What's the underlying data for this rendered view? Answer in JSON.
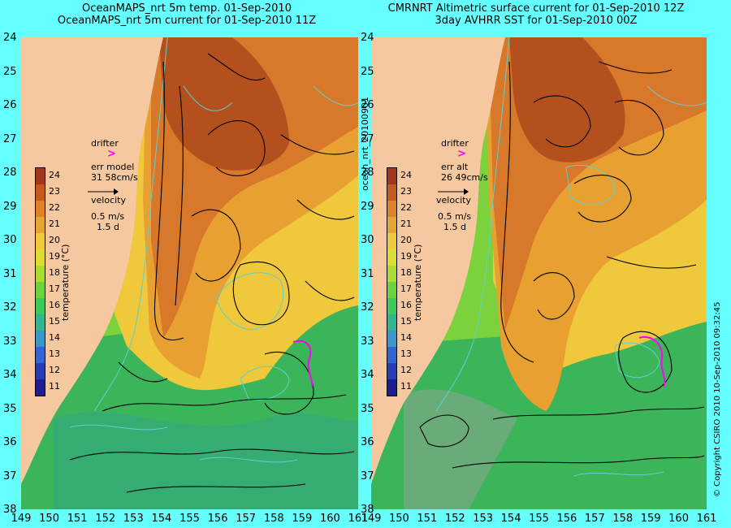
{
  "left_panel": {
    "title_line1": "OceanMAPS_nrt 5m temp. 01-Sep-2010",
    "title_line2": "OceanMAPS_nrt 5m current for 01-Sep-2010 11Z",
    "drifter_label": "drifter",
    "drifter_marker": ">",
    "err_label": "err model",
    "err_value": "31 58cm/s",
    "velocity_label": "velocity",
    "velocity_scale": "0.5 m/s",
    "velocity_time": "1.5 d"
  },
  "right_panel": {
    "title_line1": "CMRNRT Altimetric surface current for 01-Sep-2010 12Z",
    "title_line2": "3day AVHRR SST for 01-Sep-2010 00Z",
    "drifter_label": "drifter",
    "drifter_marker": ">",
    "err_label": "err alt",
    "err_value": "26 49cm/s",
    "velocity_label": "velocity",
    "velocity_scale": "0.5 m/s",
    "velocity_time": "1.5 d"
  },
  "center_vertical_label": "ocean_nrt_20100901",
  "copyright_label": "© Copyright CSIRO 2010   10-Sep-2010 09:32:45",
  "colorbar": {
    "label": "temperature (°C)",
    "ticks": [
      "24",
      "23",
      "22",
      "21",
      "20",
      "19",
      "18",
      "17",
      "16",
      "15",
      "14",
      "13",
      "12",
      "11"
    ],
    "colors": [
      "#a0371e",
      "#c65a1e",
      "#dc8228",
      "#e6a532",
      "#f0c83c",
      "#dcdc32",
      "#aadc32",
      "#6ed23c",
      "#3cc85a",
      "#32b48c",
      "#3c96c8",
      "#3264d2",
      "#283cb4",
      "#1e1e8c"
    ]
  },
  "latitude_labels": [
    "24",
    "25",
    "26",
    "27",
    "28",
    "29",
    "30",
    "31",
    "32",
    "33",
    "34",
    "35",
    "36",
    "37",
    "38"
  ],
  "longitude_labels": [
    "149",
    "150",
    "151",
    "152",
    "153",
    "154",
    "155",
    "156",
    "157",
    "158",
    "159",
    "160",
    "161"
  ],
  "map_colors": {
    "frame": "#66ffff",
    "land": "#f5c8a0",
    "warm_core": "#b4501e",
    "warm": "#d8782a",
    "mid_warm": "#e8a030",
    "mid": "#f0c83c",
    "cool": "#7cd23c",
    "cold": "#3cb45a",
    "coast_water": "#32aa78",
    "missing": "#a0a0a0",
    "contour": "#5ad2d2",
    "streamline": "#000000",
    "drifter_track": "#ff00ff"
  },
  "map_extent": {
    "lon_min": 149,
    "lon_max": 161,
    "lat_min": 24,
    "lat_max": 38
  },
  "icons": {
    "velocity_arrow": "right-arrow",
    "drifter_marker": "chevron-right"
  }
}
